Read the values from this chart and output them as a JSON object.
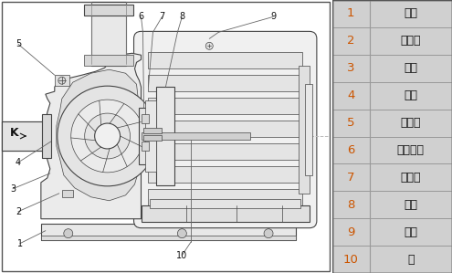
{
  "bg_color": "#ffffff",
  "table_bg": "#d0d0d0",
  "table_line_color": "#999999",
  "border_color": "#444444",
  "pump_line_color": "#444444",
  "number_color": "#cc5500",
  "text_color": "#111111",
  "axis_line_color": "#aaaaaa",
  "legend_items": [
    {
      "num": "1",
      "label": "底座"
    },
    {
      "num": "2",
      "label": "放水孔"
    },
    {
      "num": "3",
      "label": "泵体"
    },
    {
      "num": "4",
      "label": "叶轮"
    },
    {
      "num": "5",
      "label": "取压孔"
    },
    {
      "num": "6",
      "label": "机械密封"
    },
    {
      "num": "7",
      "label": "挡水圈"
    },
    {
      "num": "8",
      "label": "端盖"
    },
    {
      "num": "9",
      "label": "电机"
    },
    {
      "num": "10",
      "label": "轴"
    }
  ],
  "figsize": [
    4.95,
    2.99
  ],
  "dpi": 100
}
